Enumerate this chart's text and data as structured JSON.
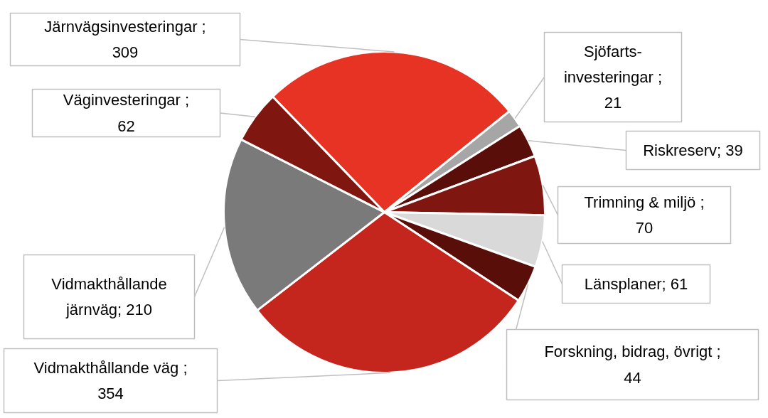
{
  "chart_data": {
    "type": "pie",
    "categories": [
      null,
      null,
      null,
      null,
      null,
      null,
      null,
      null,
      null
    ],
    "values": [
      309,
      21,
      39,
      70,
      61,
      44,
      354,
      210,
      62
    ],
    "colors": [
      "#e63323",
      "#a6a6a6",
      "#5a0e0a",
      "#7f1610",
      "#d9d9d9",
      "#5a0e0a",
      "#c4261d",
      "#7a7a7a",
      "#7f1610"
    ],
    "value_labels": [
      "Järnvägsinvesteringar ; 309",
      "Sjöfarts-investeringar ; 21",
      "Riskreserv; 39",
      "Trimning & miljö ; 70",
      "Länsplaner; 61",
      "Forskning, bidrag, övrigt ; 44",
      "Vidmakthållande väg ; 354",
      "Vidmakthållande järnväg; 210",
      "Väginvesteringar ; 62"
    ]
  }
}
